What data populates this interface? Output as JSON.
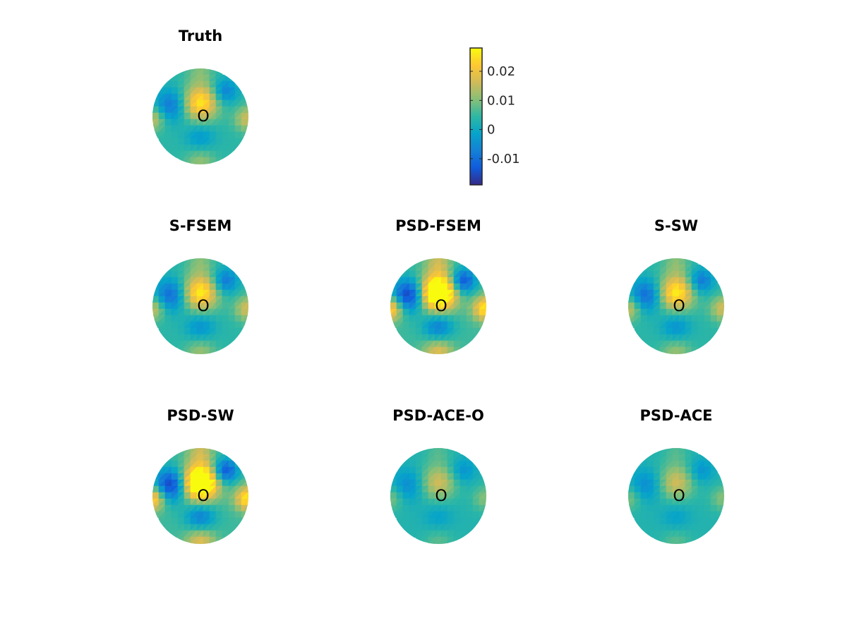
{
  "chart_data": {
    "type": "heatmap",
    "title": "",
    "panels": [
      {
        "title": "Truth",
        "marker": "O",
        "gain": 1.0,
        "peak": 0.022,
        "trough": -0.014
      },
      {
        "title": "S-FSEM",
        "marker": "O",
        "gain": 1.0,
        "peak": 0.023,
        "trough": -0.016
      },
      {
        "title": "PSD-FSEM",
        "marker": "O",
        "gain": 1.35,
        "peak": 0.028,
        "trough": -0.018
      },
      {
        "title": "S-SW",
        "marker": "O",
        "gain": 1.0,
        "peak": 0.023,
        "trough": -0.016
      },
      {
        "title": "PSD-SW",
        "marker": "O",
        "gain": 1.35,
        "peak": 0.028,
        "trough": -0.018
      },
      {
        "title": "PSD-ACE-O",
        "marker": "O",
        "gain": 0.75,
        "peak": 0.018,
        "trough": -0.012
      },
      {
        "title": "PSD-ACE",
        "marker": "O",
        "gain": 0.75,
        "peak": 0.018,
        "trough": -0.012
      }
    ],
    "colorbar": {
      "colormap": "parula",
      "clim": [
        -0.019,
        0.028
      ],
      "ticks": [
        {
          "value": 0.02,
          "label": "0.02"
        },
        {
          "value": 0.01,
          "label": "0.01"
        },
        {
          "value": 0,
          "label": "0"
        },
        {
          "value": -0.01,
          "label": "-0.01"
        }
      ]
    },
    "colors": {
      "parula": [
        "#352a87",
        "#0f5cdd",
        "#1481d6",
        "#06a4ca",
        "#2eb7a4",
        "#87bf77",
        "#d1bb59",
        "#fec832",
        "#f9fb0e"
      ]
    }
  }
}
